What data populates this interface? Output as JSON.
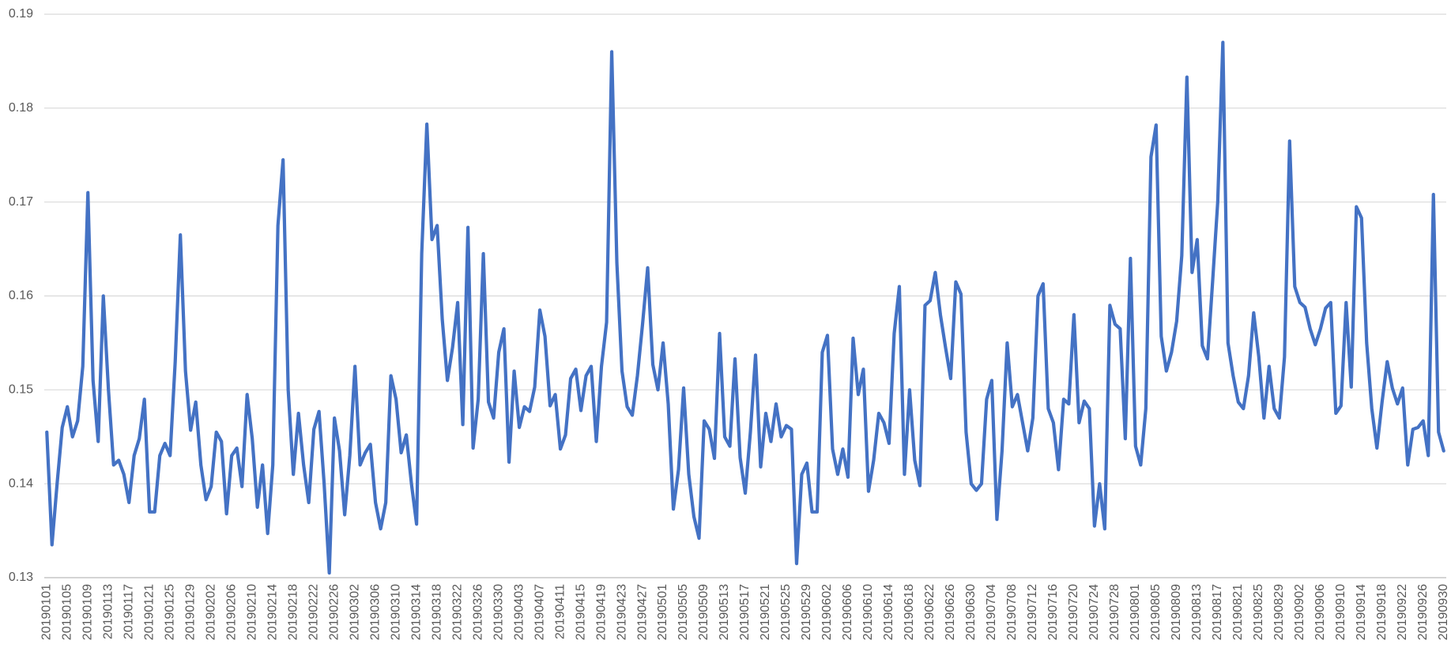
{
  "chart_data": {
    "type": "line",
    "color": "#4472c4",
    "grid": true,
    "ylim": [
      0.13,
      0.19
    ],
    "yticks": [
      0.13,
      0.14,
      0.15,
      0.16,
      0.17,
      0.18,
      0.19
    ],
    "categories": [
      "20190101",
      null,
      null,
      null,
      "20190105",
      null,
      null,
      null,
      "20190109",
      null,
      null,
      null,
      "20190113",
      null,
      null,
      null,
      "20190117",
      null,
      null,
      null,
      "20190121",
      null,
      null,
      null,
      "20190125",
      null,
      null,
      null,
      "20190129",
      null,
      null,
      null,
      "20190202",
      null,
      null,
      null,
      "20190206",
      null,
      null,
      null,
      "20190210",
      null,
      null,
      null,
      "20190214",
      null,
      null,
      null,
      "20190218",
      null,
      null,
      null,
      "20190222",
      null,
      null,
      null,
      "20190226",
      null,
      null,
      null,
      "20190302",
      null,
      null,
      null,
      "20190306",
      null,
      null,
      null,
      "20190310",
      null,
      null,
      null,
      "20190314",
      null,
      null,
      null,
      "20190318",
      null,
      null,
      null,
      "20190322",
      null,
      null,
      null,
      "20190326",
      null,
      null,
      null,
      "20190330",
      null,
      null,
      null,
      "20190403",
      null,
      null,
      null,
      "20190407",
      null,
      null,
      null,
      "20190411",
      null,
      null,
      null,
      "20190415",
      null,
      null,
      null,
      "20190419",
      null,
      null,
      null,
      "20190423",
      null,
      null,
      null,
      "20190427",
      null,
      null,
      null,
      "20190501",
      null,
      null,
      null,
      "20190505",
      null,
      null,
      null,
      "20190509",
      null,
      null,
      null,
      "20190513",
      null,
      null,
      null,
      "20190517",
      null,
      null,
      null,
      "20190521",
      null,
      null,
      null,
      "20190525",
      null,
      null,
      null,
      "20190529",
      null,
      null,
      null,
      "20190602",
      null,
      null,
      null,
      "20190606",
      null,
      null,
      null,
      "20190610",
      null,
      null,
      null,
      "20190614",
      null,
      null,
      null,
      "20190618",
      null,
      null,
      null,
      "20190622",
      null,
      null,
      null,
      "20190626",
      null,
      null,
      null,
      "20190630",
      null,
      null,
      null,
      "20190704",
      null,
      null,
      null,
      "20190708",
      null,
      null,
      null,
      "20190712",
      null,
      null,
      null,
      "20190716",
      null,
      null,
      null,
      "20190720",
      null,
      null,
      null,
      "20190724",
      null,
      null,
      null,
      "20190728",
      null,
      null,
      null,
      "20190801",
      null,
      null,
      null,
      "20190805",
      null,
      null,
      null,
      "20190809",
      null,
      null,
      null,
      "20190813",
      null,
      null,
      null,
      "20190817",
      null,
      null,
      null,
      "20190821",
      null,
      null,
      null,
      "20190825",
      null,
      null,
      null,
      "20190829",
      null,
      null,
      null,
      "20190902",
      null,
      null,
      null,
      "20190906",
      null,
      null,
      null,
      "20190910",
      null,
      null,
      null,
      "20190914",
      null,
      null,
      null,
      "20190918",
      null,
      null,
      null,
      "20190922",
      null,
      null,
      null,
      "20190926",
      null,
      null,
      null,
      "20190930"
    ],
    "values": [
      0.1455,
      0.1335,
      0.14,
      0.146,
      0.1482,
      0.145,
      0.1467,
      0.1525,
      0.171,
      0.151,
      0.1445,
      0.16,
      0.15,
      0.142,
      0.1425,
      0.141,
      0.138,
      0.143,
      0.1448,
      0.149,
      0.137,
      0.137,
      0.143,
      0.1443,
      0.143,
      0.153,
      0.1665,
      0.152,
      0.1457,
      0.1487,
      0.142,
      0.1383,
      0.1397,
      0.1455,
      0.1445,
      0.1368,
      0.143,
      0.1438,
      0.1397,
      0.1495,
      0.1448,
      0.1375,
      0.142,
      0.1347,
      0.142,
      0.1675,
      0.1745,
      0.15,
      0.141,
      0.1475,
      0.142,
      0.138,
      0.1458,
      0.1477,
      0.14,
      0.1305,
      0.147,
      0.1435,
      0.1367,
      0.143,
      0.1525,
      0.142,
      0.1433,
      0.1442,
      0.138,
      0.1352,
      0.138,
      0.1515,
      0.149,
      0.1433,
      0.1452,
      0.14,
      0.1357,
      0.1645,
      0.1783,
      0.166,
      0.1675,
      0.1575,
      0.151,
      0.1545,
      0.1593,
      0.1463,
      0.1673,
      0.1438,
      0.149,
      0.1645,
      0.1487,
      0.147,
      0.154,
      0.1565,
      0.1423,
      0.152,
      0.146,
      0.1482,
      0.1477,
      0.1503,
      0.1585,
      0.1557,
      0.1483,
      0.1495,
      0.1437,
      0.1452,
      0.1512,
      0.1522,
      0.1478,
      0.1515,
      0.1525,
      0.1445,
      0.1525,
      0.1572,
      0.186,
      0.1635,
      0.152,
      0.1482,
      0.1473,
      0.1515,
      0.157,
      0.163,
      0.1527,
      0.15,
      0.155,
      0.1485,
      0.1373,
      0.1415,
      0.1502,
      0.141,
      0.1365,
      0.1342,
      0.1467,
      0.1458,
      0.1427,
      0.156,
      0.145,
      0.144,
      0.1533,
      0.1428,
      0.139,
      0.1455,
      0.1537,
      0.1418,
      0.1475,
      0.1445,
      0.1485,
      0.145,
      0.1462,
      0.1458,
      0.1315,
      0.141,
      0.1422,
      0.137,
      0.137,
      0.154,
      0.1558,
      0.1437,
      0.141,
      0.1437,
      0.1407,
      0.1555,
      0.1495,
      0.1522,
      0.1392,
      0.1425,
      0.1475,
      0.1465,
      0.1443,
      0.156,
      0.161,
      0.141,
      0.15,
      0.1425,
      0.1398,
      0.159,
      0.1595,
      0.1625,
      0.158,
      0.1545,
      0.1512,
      0.1615,
      0.1602,
      0.1455,
      0.14,
      0.1393,
      0.14,
      0.149,
      0.151,
      0.1362,
      0.1435,
      0.155,
      0.1482,
      0.1495,
      0.1465,
      0.1435,
      0.147,
      0.16,
      0.1613,
      0.148,
      0.1465,
      0.1415,
      0.149,
      0.1485,
      0.158,
      0.1465,
      0.1488,
      0.148,
      0.1355,
      0.14,
      0.1352,
      0.159,
      0.157,
      0.1565,
      0.1448,
      0.164,
      0.144,
      0.142,
      0.148,
      0.1748,
      0.1782,
      0.1557,
      0.152,
      0.154,
      0.1573,
      0.1643,
      0.1833,
      0.1625,
      0.166,
      0.1547,
      0.1533,
      0.1615,
      0.17,
      0.187,
      0.155,
      0.1515,
      0.1487,
      0.148,
      0.1515,
      0.1582,
      0.1535,
      0.147,
      0.1525,
      0.148,
      0.147,
      0.1535,
      0.1765,
      0.161,
      0.1593,
      0.1588,
      0.1565,
      0.1548,
      0.1565,
      0.1587,
      0.1593,
      0.1475,
      0.1483,
      0.1593,
      0.1503,
      0.1695,
      0.1683,
      0.155,
      0.148,
      0.1438,
      0.1487,
      0.153,
      0.1502,
      0.1485,
      0.1502,
      0.142,
      0.1458,
      0.146,
      0.1467,
      0.143,
      0.1708,
      0.1455,
      0.1435
    ]
  }
}
